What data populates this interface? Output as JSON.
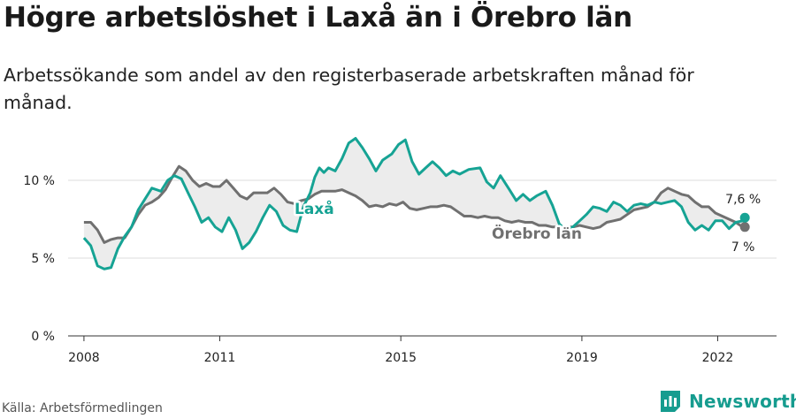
{
  "title": "Högre arbetslöshet i Laxå än i Örebro län",
  "subtitle": "Arbetssökande som andel av den registerbaserade arbetskraften månad för månad.",
  "source": "Källa: Arbetsförmedlingen",
  "brand": "Newsworthy",
  "colors": {
    "laxa": "#16a394",
    "orebro": "#707070",
    "band": "#ececec",
    "grid": "#dedede",
    "brand": "#169c8f"
  },
  "chart_data": {
    "type": "line",
    "x_unit": "year",
    "xlim": [
      2007.65,
      2023.3
    ],
    "ylim": [
      0,
      12.5
    ],
    "y_ticks": [
      0,
      5,
      10
    ],
    "y_tick_labels": [
      "0 %",
      "5 %",
      "10 %"
    ],
    "x_ticks": [
      2008,
      2011,
      2015,
      2019,
      2022
    ],
    "x_tick_labels": [
      "2008",
      "2011",
      "2015",
      "2019",
      "2022"
    ],
    "grid": true,
    "legend": "inline labels",
    "series": [
      {
        "name": "Laxå",
        "end_label": "7,6 %",
        "points": [
          [
            2008.0,
            6.3
          ],
          [
            2008.15,
            5.8
          ],
          [
            2008.3,
            4.5
          ],
          [
            2008.45,
            4.3
          ],
          [
            2008.6,
            4.4
          ],
          [
            2008.75,
            5.6
          ],
          [
            2008.9,
            6.4
          ],
          [
            2009.05,
            7.0
          ],
          [
            2009.2,
            8.1
          ],
          [
            2009.35,
            8.8
          ],
          [
            2009.5,
            9.5
          ],
          [
            2009.7,
            9.3
          ],
          [
            2009.85,
            10.0
          ],
          [
            2010.0,
            10.3
          ],
          [
            2010.15,
            10.1
          ],
          [
            2010.3,
            9.2
          ],
          [
            2010.45,
            8.3
          ],
          [
            2010.6,
            7.3
          ],
          [
            2010.75,
            7.6
          ],
          [
            2010.9,
            7.0
          ],
          [
            2011.05,
            6.7
          ],
          [
            2011.2,
            7.6
          ],
          [
            2011.35,
            6.8
          ],
          [
            2011.5,
            5.6
          ],
          [
            2011.65,
            6.0
          ],
          [
            2011.8,
            6.7
          ],
          [
            2011.95,
            7.6
          ],
          [
            2012.1,
            8.4
          ],
          [
            2012.25,
            8.0
          ],
          [
            2012.4,
            7.1
          ],
          [
            2012.55,
            6.8
          ],
          [
            2012.7,
            6.7
          ],
          [
            2012.85,
            8.3
          ],
          [
            2013.0,
            9.2
          ],
          [
            2013.1,
            10.2
          ],
          [
            2013.2,
            10.8
          ],
          [
            2013.3,
            10.5
          ],
          [
            2013.4,
            10.8
          ],
          [
            2013.55,
            10.6
          ],
          [
            2013.7,
            11.4
          ],
          [
            2013.85,
            12.4
          ],
          [
            2014.0,
            12.7
          ],
          [
            2014.15,
            12.1
          ],
          [
            2014.3,
            11.4
          ],
          [
            2014.45,
            10.6
          ],
          [
            2014.6,
            11.3
          ],
          [
            2014.8,
            11.7
          ],
          [
            2014.95,
            12.3
          ],
          [
            2015.1,
            12.6
          ],
          [
            2015.25,
            11.2
          ],
          [
            2015.4,
            10.4
          ],
          [
            2015.55,
            10.8
          ],
          [
            2015.7,
            11.2
          ],
          [
            2015.85,
            10.8
          ],
          [
            2016.0,
            10.3
          ],
          [
            2016.15,
            10.6
          ],
          [
            2016.3,
            10.4
          ],
          [
            2016.5,
            10.7
          ],
          [
            2016.75,
            10.8
          ],
          [
            2016.9,
            9.9
          ],
          [
            2017.05,
            9.5
          ],
          [
            2017.2,
            10.3
          ],
          [
            2017.4,
            9.4
          ],
          [
            2017.55,
            8.7
          ],
          [
            2017.7,
            9.1
          ],
          [
            2017.85,
            8.7
          ],
          [
            2018.0,
            9.0
          ],
          [
            2018.2,
            9.3
          ],
          [
            2018.35,
            8.4
          ],
          [
            2018.5,
            7.2
          ],
          [
            2018.65,
            6.8
          ],
          [
            2018.8,
            7.0
          ],
          [
            2018.95,
            7.4
          ],
          [
            2019.1,
            7.8
          ],
          [
            2019.25,
            8.3
          ],
          [
            2019.4,
            8.2
          ],
          [
            2019.55,
            8.0
          ],
          [
            2019.7,
            8.6
          ],
          [
            2019.85,
            8.4
          ],
          [
            2020.0,
            8.0
          ],
          [
            2020.15,
            8.4
          ],
          [
            2020.3,
            8.5
          ],
          [
            2020.45,
            8.4
          ],
          [
            2020.6,
            8.6
          ],
          [
            2020.75,
            8.5
          ],
          [
            2020.9,
            8.6
          ],
          [
            2021.05,
            8.7
          ],
          [
            2021.2,
            8.3
          ],
          [
            2021.35,
            7.3
          ],
          [
            2021.5,
            6.8
          ],
          [
            2021.65,
            7.1
          ],
          [
            2021.8,
            6.8
          ],
          [
            2021.95,
            7.4
          ],
          [
            2022.1,
            7.4
          ],
          [
            2022.25,
            6.9
          ],
          [
            2022.4,
            7.3
          ],
          [
            2022.55,
            7.4
          ],
          [
            2022.6,
            7.6
          ]
        ]
      },
      {
        "name": "Örebro län",
        "end_label": "7 %",
        "points": [
          [
            2008.0,
            7.3
          ],
          [
            2008.15,
            7.3
          ],
          [
            2008.3,
            6.8
          ],
          [
            2008.45,
            6.0
          ],
          [
            2008.6,
            6.2
          ],
          [
            2008.75,
            6.3
          ],
          [
            2008.9,
            6.3
          ],
          [
            2009.05,
            7.0
          ],
          [
            2009.2,
            7.8
          ],
          [
            2009.35,
            8.4
          ],
          [
            2009.5,
            8.6
          ],
          [
            2009.65,
            8.9
          ],
          [
            2009.8,
            9.4
          ],
          [
            2009.95,
            10.2
          ],
          [
            2010.1,
            10.9
          ],
          [
            2010.25,
            10.6
          ],
          [
            2010.4,
            10.0
          ],
          [
            2010.55,
            9.6
          ],
          [
            2010.7,
            9.8
          ],
          [
            2010.85,
            9.6
          ],
          [
            2011.0,
            9.6
          ],
          [
            2011.15,
            10.0
          ],
          [
            2011.3,
            9.5
          ],
          [
            2011.45,
            9.0
          ],
          [
            2011.6,
            8.8
          ],
          [
            2011.75,
            9.2
          ],
          [
            2011.9,
            9.2
          ],
          [
            2012.05,
            9.2
          ],
          [
            2012.2,
            9.5
          ],
          [
            2012.35,
            9.1
          ],
          [
            2012.5,
            8.6
          ],
          [
            2012.65,
            8.5
          ],
          [
            2012.8,
            8.7
          ],
          [
            2012.95,
            8.8
          ],
          [
            2013.1,
            9.1
          ],
          [
            2013.25,
            9.3
          ],
          [
            2013.4,
            9.3
          ],
          [
            2013.55,
            9.3
          ],
          [
            2013.7,
            9.4
          ],
          [
            2013.85,
            9.2
          ],
          [
            2014.0,
            9.0
          ],
          [
            2014.15,
            8.7
          ],
          [
            2014.3,
            8.3
          ],
          [
            2014.45,
            8.4
          ],
          [
            2014.6,
            8.3
          ],
          [
            2014.75,
            8.5
          ],
          [
            2014.9,
            8.4
          ],
          [
            2015.05,
            8.6
          ],
          [
            2015.2,
            8.2
          ],
          [
            2015.35,
            8.1
          ],
          [
            2015.5,
            8.2
          ],
          [
            2015.65,
            8.3
          ],
          [
            2015.8,
            8.3
          ],
          [
            2015.95,
            8.4
          ],
          [
            2016.1,
            8.3
          ],
          [
            2016.25,
            8.0
          ],
          [
            2016.4,
            7.7
          ],
          [
            2016.55,
            7.7
          ],
          [
            2016.7,
            7.6
          ],
          [
            2016.85,
            7.7
          ],
          [
            2017.0,
            7.6
          ],
          [
            2017.15,
            7.6
          ],
          [
            2017.3,
            7.4
          ],
          [
            2017.45,
            7.3
          ],
          [
            2017.6,
            7.4
          ],
          [
            2017.75,
            7.3
          ],
          [
            2017.9,
            7.3
          ],
          [
            2018.05,
            7.1
          ],
          [
            2018.2,
            7.1
          ],
          [
            2018.35,
            7.0
          ],
          [
            2018.5,
            7.0
          ],
          [
            2018.65,
            7.0
          ],
          [
            2018.8,
            7.0
          ],
          [
            2018.95,
            7.1
          ],
          [
            2019.1,
            7.0
          ],
          [
            2019.25,
            6.9
          ],
          [
            2019.4,
            7.0
          ],
          [
            2019.55,
            7.3
          ],
          [
            2019.7,
            7.4
          ],
          [
            2019.85,
            7.5
          ],
          [
            2020.0,
            7.8
          ],
          [
            2020.15,
            8.1
          ],
          [
            2020.3,
            8.2
          ],
          [
            2020.45,
            8.3
          ],
          [
            2020.6,
            8.6
          ],
          [
            2020.75,
            9.2
          ],
          [
            2020.9,
            9.5
          ],
          [
            2021.05,
            9.3
          ],
          [
            2021.2,
            9.1
          ],
          [
            2021.35,
            9.0
          ],
          [
            2021.5,
            8.6
          ],
          [
            2021.65,
            8.3
          ],
          [
            2021.8,
            8.3
          ],
          [
            2021.95,
            7.9
          ],
          [
            2022.1,
            7.7
          ],
          [
            2022.25,
            7.5
          ],
          [
            2022.4,
            7.3
          ],
          [
            2022.55,
            7.0
          ],
          [
            2022.6,
            7.0
          ]
        ]
      }
    ]
  }
}
